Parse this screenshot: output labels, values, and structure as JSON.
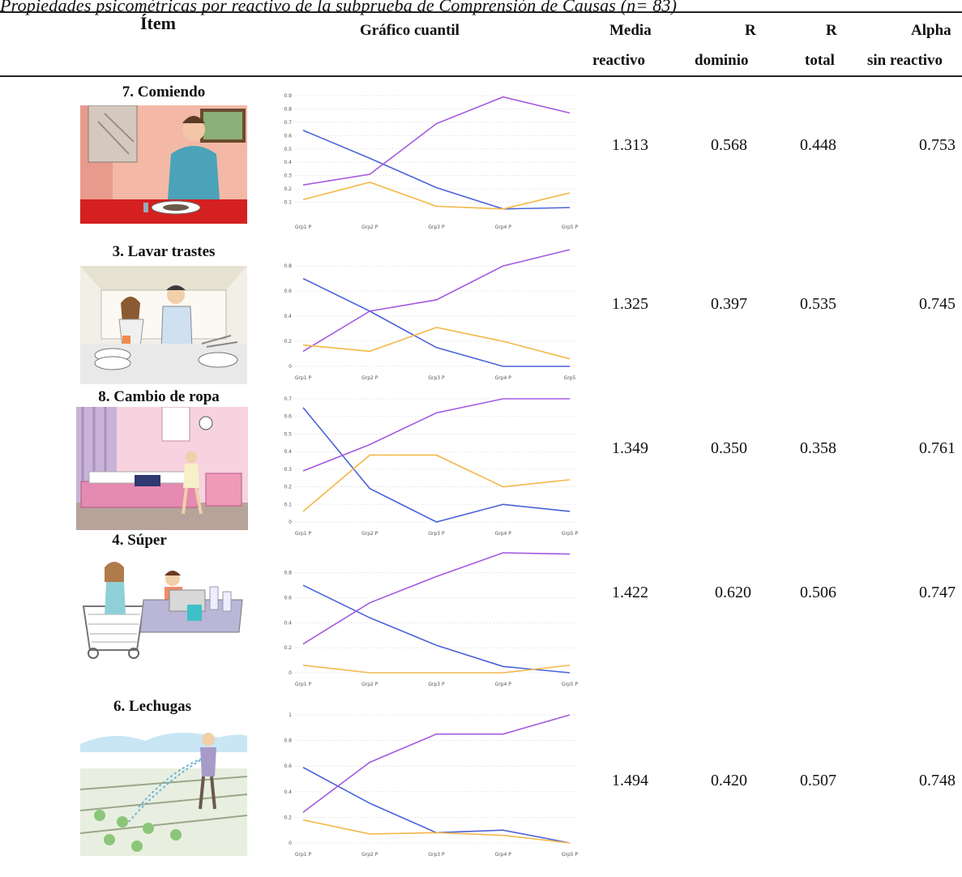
{
  "caption": "Propiedades psicométricas por reactivo de la subprueba de Comprensión de Causas (n= 83)",
  "headers": {
    "item": "Ítem",
    "grafico": "Gráfico cuantil",
    "media_1": "Media",
    "media_2": "reactivo",
    "rdom_1": "R",
    "rdom_2": "dominio",
    "rtot_1": "R",
    "rtot_2": "total",
    "alpha_1": "Alpha",
    "alpha_2": "sin reactivo"
  },
  "colors": {
    "blue": "#4a63d8",
    "purple": "#a45ae0",
    "orange": "#f4b84a",
    "rule": "#222222"
  },
  "rows": [
    {
      "title": "7. Comiendo",
      "illustration_icon": "person-eating-icon",
      "media": "1.313",
      "r_dominio": "0.568",
      "r_total": "0.448",
      "alpha": "0.753",
      "chart_data": {
        "type": "line",
        "categories": [
          "Grp1 P",
          "Grp2 P",
          "Grp3 P",
          "Grp4 P",
          "Grp5 P"
        ],
        "ylim": [
          0,
          0.9
        ],
        "yticks": [
          "0.1",
          "0.2",
          "0.3",
          "0.4",
          "0.5",
          "0.6",
          "0.7",
          "0.8",
          "0.9"
        ],
        "series": [
          {
            "color": "#4a63d8",
            "values": [
              0.64,
              0.43,
              0.21,
              0.05,
              0.06
            ]
          },
          {
            "color": "#a45ae0",
            "values": [
              0.23,
              0.31,
              0.69,
              0.89,
              0.77
            ]
          },
          {
            "color": "#f4b84a",
            "values": [
              0.12,
              0.25,
              0.07,
              0.05,
              0.17
            ]
          }
        ]
      }
    },
    {
      "title": "3. Lavar trastes",
      "illustration_icon": "washing-dishes-icon",
      "media": "1.325",
      "r_dominio": "0.397",
      "r_total": "0.535",
      "alpha": "0.745",
      "chart_data": {
        "type": "line",
        "categories": [
          "Grp1 P",
          "Grp2 P",
          "Grp3 P",
          "Grp4 P",
          "Grp5"
        ],
        "ylim": [
          0,
          0.93
        ],
        "yticks": [
          "0",
          "0.2",
          "0.4",
          "0.6",
          "0.8"
        ],
        "series": [
          {
            "color": "#4a63d8",
            "values": [
              0.7,
              0.44,
              0.15,
              0.0,
              0.0
            ]
          },
          {
            "color": "#a45ae0",
            "values": [
              0.12,
              0.44,
              0.53,
              0.8,
              0.93
            ]
          },
          {
            "color": "#f4b84a",
            "values": [
              0.17,
              0.12,
              0.31,
              0.2,
              0.06
            ]
          }
        ]
      }
    },
    {
      "title": "8. Cambio de ropa",
      "illustration_icon": "bedroom-clothes-icon",
      "media": "1.349",
      "r_dominio": "0.350",
      "r_total": "0.358",
      "alpha": "0.761",
      "chart_data": {
        "type": "line",
        "categories": [
          "Grp1 P",
          "Grp2 P",
          "Grp3 P",
          "Grp4 P",
          "Grp5 P"
        ],
        "ylim": [
          0,
          0.7
        ],
        "yticks": [
          "0",
          "0.1",
          "0.2",
          "0.3",
          "0.4",
          "0.5",
          "0.6",
          "0.7"
        ],
        "series": [
          {
            "color": "#4a63d8",
            "values": [
              0.65,
              0.19,
              0.0,
              0.1,
              0.06
            ]
          },
          {
            "color": "#a45ae0",
            "values": [
              0.29,
              0.44,
              0.62,
              0.7,
              0.7
            ]
          },
          {
            "color": "#f4b84a",
            "values": [
              0.06,
              0.38,
              0.38,
              0.2,
              0.24
            ]
          }
        ]
      }
    },
    {
      "title": "4. Súper",
      "illustration_icon": "supermarket-icon",
      "media": "1.422",
      "r_dominio": "0.620",
      "r_total": "0.506",
      "alpha": "0.747",
      "chart_data": {
        "type": "line",
        "categories": [
          "Grp1 P",
          "Grp2 P",
          "Grp3 P",
          "Grp4 P",
          "Grp5 P"
        ],
        "ylim": [
          0,
          0.96
        ],
        "yticks": [
          "0",
          "0.2",
          "0.4",
          "0.6",
          "0.8"
        ],
        "series": [
          {
            "color": "#4a63d8",
            "values": [
              0.7,
              0.44,
              0.22,
              0.05,
              0.0
            ]
          },
          {
            "color": "#a45ae0",
            "values": [
              0.23,
              0.56,
              0.77,
              0.96,
              0.95
            ]
          },
          {
            "color": "#f4b84a",
            "values": [
              0.06,
              0.0,
              0.0,
              0.0,
              0.06
            ]
          }
        ]
      }
    },
    {
      "title": "6. Lechugas",
      "illustration_icon": "watering-lettuce-icon",
      "media": "1.494",
      "r_dominio": "0.420",
      "r_total": "0.507",
      "alpha": "0.748",
      "chart_data": {
        "type": "line",
        "categories": [
          "Grp1 P",
          "Grp2 P",
          "Grp3 P",
          "Grp4 P",
          "Grp5 P"
        ],
        "ylim": [
          0,
          1
        ],
        "yticks": [
          "0",
          "0.2",
          "0.4",
          "0.6",
          "0.8",
          "1"
        ],
        "series": [
          {
            "color": "#4a63d8",
            "values": [
              0.59,
              0.31,
              0.08,
              0.1,
              0.0
            ]
          },
          {
            "color": "#a45ae0",
            "values": [
              0.24,
              0.63,
              0.85,
              0.85,
              1.0
            ]
          },
          {
            "color": "#f4b84a",
            "values": [
              0.18,
              0.07,
              0.08,
              0.06,
              0.0
            ]
          }
        ]
      }
    }
  ]
}
